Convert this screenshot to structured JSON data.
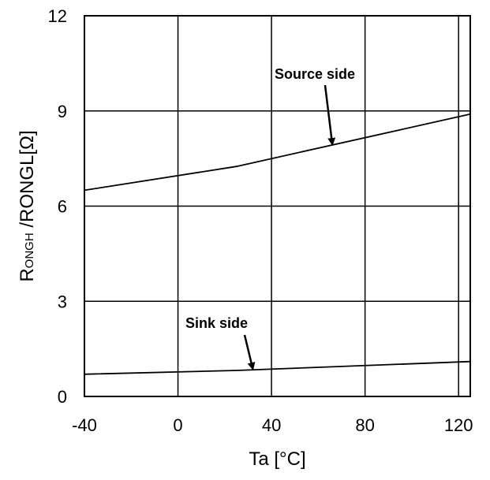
{
  "chart_data": {
    "type": "line",
    "title": "",
    "xlabel": "Ta [°C]",
    "ylabel": {
      "main": "R",
      "subscript": "ONGH",
      "rest": " /RONGL[Ω]"
    },
    "xlim": [
      -40,
      125
    ],
    "ylim": [
      0,
      12
    ],
    "x_ticks": [
      -40,
      0,
      40,
      80,
      120
    ],
    "y_ticks": [
      0,
      3,
      6,
      9,
      12
    ],
    "x_tick_labels": [
      "-40",
      "0",
      "40",
      "80",
      "120"
    ],
    "y_tick_labels": [
      "0",
      "3",
      "6",
      "9",
      "12"
    ],
    "x_gridlines": [
      0,
      40,
      80,
      120
    ],
    "y_gridlines": [
      3,
      6,
      9
    ],
    "grid": true,
    "legend": "none",
    "line_color": "#000000",
    "series": [
      {
        "name": "Source side",
        "x": [
          -40,
          25,
          125
        ],
        "y": [
          6.5,
          7.25,
          8.9
        ]
      },
      {
        "name": "Sink side",
        "x": [
          -40,
          25,
          125
        ],
        "y": [
          0.7,
          0.82,
          1.1
        ]
      }
    ],
    "annotations": [
      {
        "text": "Source side",
        "series": 0,
        "arrow_to": [
          66,
          7.95
        ]
      },
      {
        "text": "Sink side",
        "series": 1,
        "arrow_to": [
          32,
          0.87
        ]
      }
    ]
  }
}
